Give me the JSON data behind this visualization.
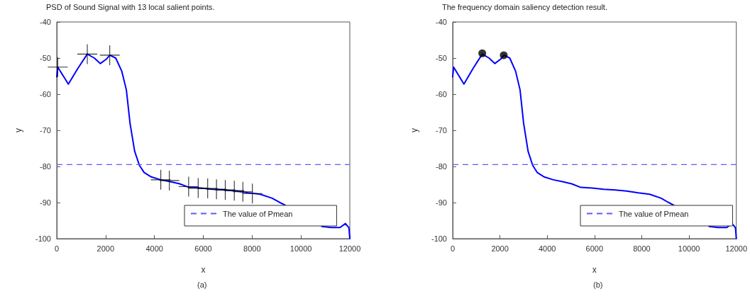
{
  "chart_data": [
    {
      "type": "line",
      "title": "PSD of Sound Signal with 13 local salient points.",
      "xlabel": "x",
      "ylabel": "y",
      "annotations": [
        "(a)"
      ],
      "xlim": [
        0,
        12000
      ],
      "ylim": [
        -100,
        -40
      ],
      "xticks": [
        0,
        2000,
        4000,
        6000,
        8000,
        10000,
        12000
      ],
      "yticks": [
        -100,
        -90,
        -80,
        -70,
        -60,
        -50,
        -40
      ],
      "grid": false,
      "legend": "bottom right",
      "series": [
        {
          "type": "line",
          "color": "#0000ff",
          "marker": "none",
          "line_style": "solid",
          "x": [
            0,
            40,
            475,
            860,
            1250,
            1540,
            1785,
            2030,
            2170,
            2415,
            2660,
            2850,
            3000,
            3190,
            3385,
            3580,
            3870,
            4260,
            4650,
            5030,
            5420,
            5900,
            6390,
            6880,
            7360,
            7850,
            8330,
            8820,
            9110,
            9350,
            10100,
            10850,
            11240,
            11600,
            11820,
            11965,
            12000
          ],
          "values": [
            -55.2,
            -52.5,
            -57.2,
            -52.9,
            -48.9,
            -50,
            -51.5,
            -50.3,
            -49.2,
            -50,
            -53.6,
            -58.8,
            -68,
            -75.8,
            -79.7,
            -81.7,
            -82.9,
            -83.7,
            -84.2,
            -84.8,
            -85.8,
            -86,
            -86.3,
            -86.5,
            -86.8,
            -87.3,
            -87.7,
            -88.8,
            -89.9,
            -90.7,
            null,
            -96.6,
            -96.9,
            -96.9,
            -95.8,
            -97,
            -100
          ]
        },
        {
          "type": "scatter",
          "color": "#000000",
          "marker": "cross",
          "x": [
            40,
            1250,
            2170,
            4260,
            4610,
            5400,
            5790,
            6180,
            6540,
            6900,
            7270,
            7620,
            8010
          ],
          "values": [
            -52.5,
            -48.9,
            -49.2,
            -83.7,
            -83.9,
            -85.6,
            -86,
            -86.1,
            -86.3,
            -86.5,
            -86.7,
            -87,
            -87.5
          ]
        }
      ],
      "ref_lines": [
        {
          "axis": "y",
          "value": -79.5,
          "label": "The value of Pmean",
          "color": "#5b5bff",
          "line_style": "dashed"
        }
      ]
    },
    {
      "type": "line",
      "title": "The frequency domain saliency detection result.",
      "xlabel": "x",
      "ylabel": "y",
      "annotations": [
        "(b)"
      ],
      "xlim": [
        0,
        12000
      ],
      "ylim": [
        -100,
        -40
      ],
      "xticks": [
        0,
        2000,
        4000,
        6000,
        8000,
        10000,
        12000
      ],
      "yticks": [
        -100,
        -90,
        -80,
        -70,
        -60,
        -50,
        -40
      ],
      "grid": false,
      "legend": "bottom right",
      "series": [
        {
          "type": "line",
          "color": "#0000ff",
          "marker": "none",
          "line_style": "solid",
          "x": [
            0,
            40,
            475,
            860,
            1250,
            1540,
            1785,
            2030,
            2170,
            2415,
            2660,
            2850,
            3000,
            3190,
            3385,
            3580,
            3870,
            4260,
            4650,
            5030,
            5420,
            5900,
            6390,
            6880,
            7360,
            7850,
            8330,
            8820,
            9110,
            9350,
            10100,
            10850,
            11240,
            11600,
            11820,
            11965,
            12000
          ],
          "values": [
            -55.2,
            -52.5,
            -57.2,
            -52.9,
            -48.9,
            -50,
            -51.5,
            -50.3,
            -49.2,
            -50,
            -53.6,
            -58.8,
            -68,
            -75.8,
            -79.7,
            -81.7,
            -82.9,
            -83.7,
            -84.2,
            -84.8,
            -85.8,
            -86,
            -86.3,
            -86.5,
            -86.8,
            -87.3,
            -87.7,
            -88.8,
            -89.9,
            -90.7,
            null,
            -96.6,
            -96.9,
            -96.9,
            -95.8,
            -97,
            -100
          ]
        },
        {
          "type": "scatter",
          "color": "#000000",
          "marker": "circle",
          "x": [
            1250,
            2160
          ],
          "values": [
            -48.7,
            -49.2
          ]
        }
      ],
      "ref_lines": [
        {
          "axis": "y",
          "value": -79.5,
          "label": "The value of Pmean",
          "color": "#5b5bff",
          "line_style": "dashed"
        }
      ]
    }
  ]
}
